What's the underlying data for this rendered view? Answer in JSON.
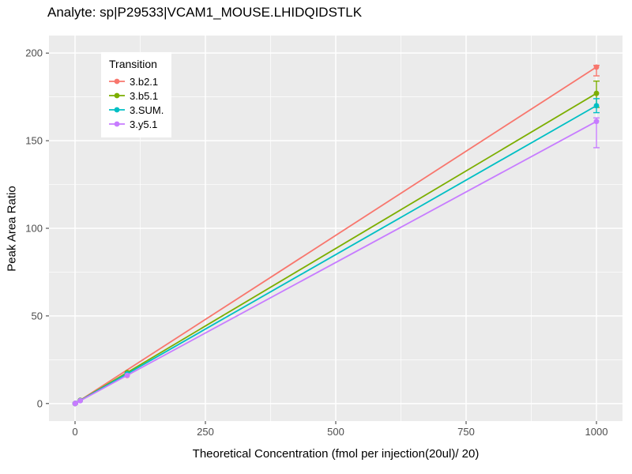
{
  "chart_data": {
    "type": "line",
    "title": "Analyte: sp|P29533|VCAM1_MOUSE.LHIDQIDSTLK",
    "xlabel": "Theoretical Concentration (fmol per injection(20ul)/ 20)",
    "ylabel": "Peak Area Ratio",
    "xlim": [
      -50,
      1050
    ],
    "ylim": [
      -10,
      210
    ],
    "xticks": [
      0,
      250,
      500,
      750,
      1000
    ],
    "yticks": [
      0,
      50,
      100,
      150,
      200
    ],
    "xminor": [
      125,
      375,
      625,
      875
    ],
    "yminor": [
      25,
      75,
      125,
      175
    ],
    "grid": true,
    "panel_color": "#EBEBEB",
    "grid_color": "#FFFFFF",
    "legend_title": "Transition",
    "legend_position": "inside-top-left",
    "series": [
      {
        "name": "3.b2.1",
        "color": "#F8766D",
        "points": [
          [
            0,
            0
          ],
          [
            1,
            0.2
          ],
          [
            10,
            1.9
          ],
          [
            100,
            16
          ],
          [
            1000,
            192
          ]
        ],
        "line": [
          [
            0,
            0
          ],
          [
            1000,
            192
          ]
        ],
        "error_bar": {
          "x": 1000,
          "low": 187,
          "high": 193
        }
      },
      {
        "name": "3.b5.1",
        "color": "#7CAE00",
        "points": [
          [
            0,
            0
          ],
          [
            1,
            0.2
          ],
          [
            10,
            1.8
          ],
          [
            100,
            17.7
          ],
          [
            1000,
            177
          ]
        ],
        "line": [
          [
            0,
            0
          ],
          [
            1000,
            177
          ]
        ],
        "error_bar": {
          "x": 1000,
          "low": 169,
          "high": 184
        }
      },
      {
        "name": "3.SUM.",
        "color": "#00BFC4",
        "points": [
          [
            0,
            0
          ],
          [
            1,
            0.2
          ],
          [
            10,
            1.7
          ],
          [
            100,
            17
          ],
          [
            1000,
            170
          ]
        ],
        "line": [
          [
            0,
            0
          ],
          [
            1000,
            170
          ]
        ],
        "error_bar": {
          "x": 1000,
          "low": 166,
          "high": 174
        }
      },
      {
        "name": "3.y5.1",
        "color": "#C77CFF",
        "points": [
          [
            0,
            0
          ],
          [
            1,
            0.2
          ],
          [
            10,
            1.6
          ],
          [
            100,
            16.1
          ],
          [
            1000,
            161
          ]
        ],
        "line": [
          [
            0,
            0
          ],
          [
            1000,
            161
          ]
        ],
        "error_bar": {
          "x": 1000,
          "low": 146,
          "high": 163
        }
      }
    ]
  }
}
